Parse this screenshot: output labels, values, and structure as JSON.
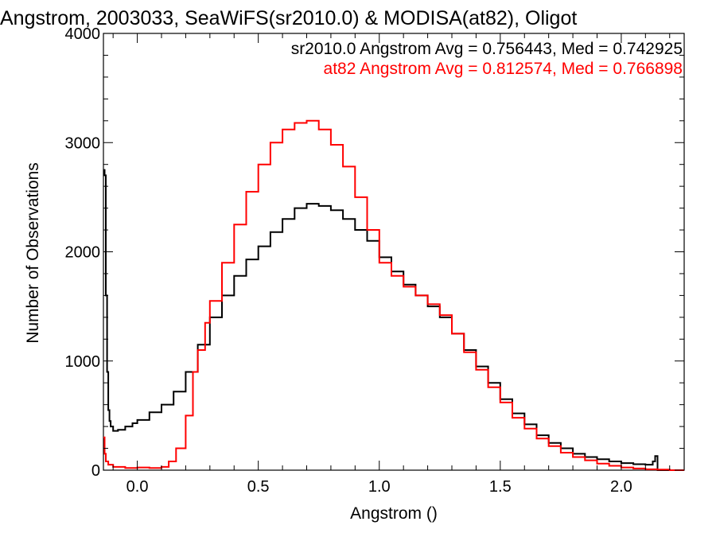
{
  "chart_data": {
    "type": "line",
    "title": "Angstrom, 2003033, SeaWiFS(sr2010.0) & MODISA(at82), Oligot",
    "xlabel": "Angstrom ()",
    "ylabel": "Number of Observations",
    "xlim": [
      -0.14,
      2.26
    ],
    "ylim": [
      0,
      4000
    ],
    "xticks": [
      0.0,
      0.5,
      1.0,
      1.5,
      2.0
    ],
    "xtick_labels": [
      "0.0",
      "0.5",
      "1.0",
      "1.5",
      "2.0"
    ],
    "yticks": [
      0,
      1000,
      2000,
      3000,
      4000
    ],
    "ytick_labels": [
      "0",
      "1000",
      "2000",
      "3000",
      "4000"
    ],
    "grid": false,
    "legend_position": "top-right",
    "legend": [
      {
        "text": "sr2010.0 Angstrom Avg = 0.756443, Med = 0.742925",
        "color": "#000000"
      },
      {
        "text": "at82 Angstrom Avg = 0.812574, Med = 0.766898",
        "color": "#ff0000"
      }
    ],
    "series": [
      {
        "color": "#000000",
        "x": [
          -0.14,
          -0.135,
          -0.13,
          -0.125,
          -0.12,
          -0.115,
          -0.11,
          -0.1,
          -0.08,
          -0.05,
          -0.02,
          0.0,
          0.05,
          0.1,
          0.15,
          0.2,
          0.25,
          0.3,
          0.35,
          0.4,
          0.45,
          0.5,
          0.55,
          0.6,
          0.65,
          0.7,
          0.75,
          0.8,
          0.85,
          0.9,
          0.95,
          1.0,
          1.05,
          1.1,
          1.15,
          1.2,
          1.25,
          1.3,
          1.35,
          1.4,
          1.45,
          1.5,
          1.55,
          1.6,
          1.65,
          1.7,
          1.75,
          1.8,
          1.85,
          1.9,
          1.95,
          2.0,
          2.05,
          2.1,
          2.13,
          2.14,
          2.15,
          2.16,
          2.2,
          2.26
        ],
        "y": [
          2750,
          2700,
          1600,
          900,
          550,
          450,
          400,
          360,
          370,
          400,
          430,
          460,
          530,
          600,
          720,
          900,
          1150,
          1400,
          1600,
          1780,
          1930,
          2050,
          2180,
          2300,
          2400,
          2440,
          2420,
          2380,
          2300,
          2200,
          2100,
          1950,
          1820,
          1700,
          1600,
          1500,
          1400,
          1250,
          1100,
          950,
          800,
          650,
          520,
          420,
          320,
          250,
          200,
          150,
          120,
          100,
          80,
          65,
          55,
          50,
          80,
          130,
          0,
          0,
          0,
          0
        ]
      },
      {
        "color": "#ff0000",
        "x": [
          -0.14,
          -0.135,
          -0.13,
          -0.12,
          -0.1,
          -0.05,
          0.0,
          0.05,
          0.1,
          0.13,
          0.16,
          0.2,
          0.23,
          0.25,
          0.28,
          0.3,
          0.35,
          0.4,
          0.45,
          0.5,
          0.55,
          0.6,
          0.65,
          0.7,
          0.75,
          0.8,
          0.85,
          0.9,
          0.95,
          1.0,
          1.05,
          1.1,
          1.15,
          1.2,
          1.25,
          1.3,
          1.35,
          1.4,
          1.45,
          1.5,
          1.55,
          1.6,
          1.65,
          1.7,
          1.75,
          1.8,
          1.85,
          1.9,
          1.95,
          2.0,
          2.05,
          2.1,
          2.15,
          2.2,
          2.26
        ],
        "y": [
          300,
          150,
          80,
          50,
          30,
          20,
          25,
          20,
          30,
          80,
          200,
          500,
          900,
          1100,
          1350,
          1550,
          1900,
          2250,
          2550,
          2800,
          3000,
          3120,
          3180,
          3200,
          3120,
          2980,
          2780,
          2500,
          2200,
          1900,
          1780,
          1680,
          1600,
          1520,
          1420,
          1250,
          1080,
          920,
          760,
          620,
          480,
          380,
          290,
          220,
          160,
          120,
          90,
          60,
          40,
          25,
          15,
          8,
          5,
          0,
          0
        ]
      }
    ]
  }
}
